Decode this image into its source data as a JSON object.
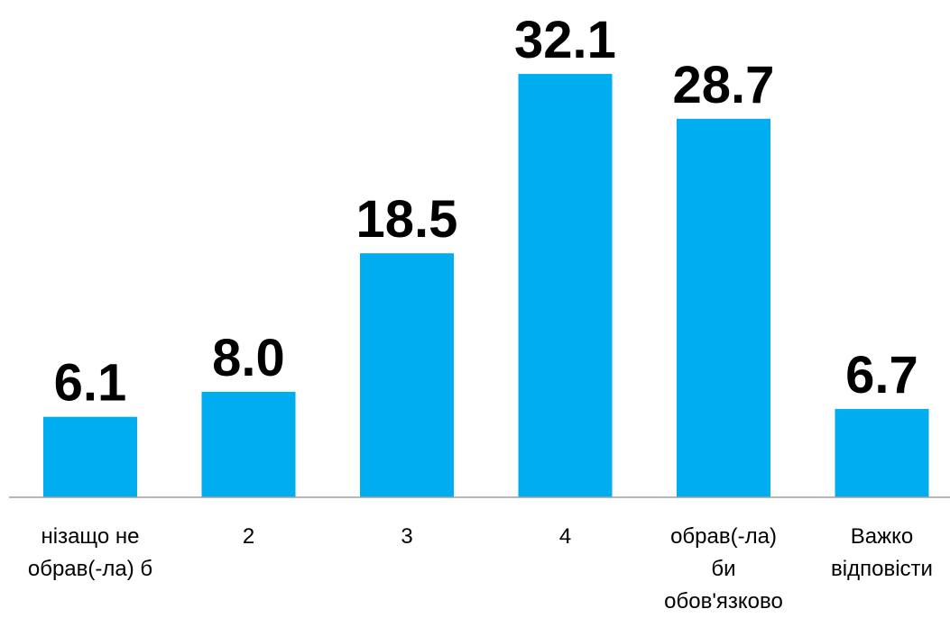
{
  "chart_data": {
    "type": "bar",
    "categories": [
      [
        "нізащо не",
        "обрав(-ла) б"
      ],
      [
        "2"
      ],
      [
        "3"
      ],
      [
        "4"
      ],
      [
        "обрав(-ла)",
        "би",
        "обов'язково"
      ],
      [
        "Важко",
        "відповісти"
      ]
    ],
    "values": [
      6.1,
      8.0,
      18.5,
      32.1,
      28.7,
      6.7
    ],
    "value_labels": [
      "6.1",
      "8.0",
      "18.5",
      "32.1",
      "28.7",
      "6.7"
    ],
    "title": "",
    "xlabel": "",
    "ylabel": "",
    "ylim": [
      0,
      34.6
    ],
    "grid": false,
    "legend": "none",
    "bar_color": "#00AEEF"
  }
}
